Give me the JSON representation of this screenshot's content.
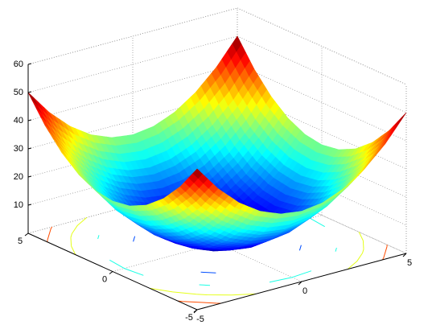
{
  "chart_data": {
    "type": "surface",
    "x": [
      -5,
      -4,
      -3,
      -2,
      -1,
      0,
      1,
      2,
      3,
      4,
      5
    ],
    "y": [
      -5,
      -4,
      -3,
      -2,
      -1,
      0,
      1,
      2,
      3,
      4,
      5
    ],
    "z": [
      [
        50,
        41,
        34,
        29,
        26,
        25,
        26,
        29,
        34,
        41,
        50
      ],
      [
        41,
        32,
        25,
        20,
        17,
        16,
        17,
        20,
        25,
        32,
        41
      ],
      [
        34,
        25,
        18,
        13,
        10,
        9,
        10,
        13,
        18,
        25,
        34
      ],
      [
        29,
        20,
        13,
        8,
        5,
        4,
        5,
        8,
        13,
        20,
        29
      ],
      [
        26,
        17,
        10,
        5,
        2,
        1,
        2,
        5,
        10,
        17,
        26
      ],
      [
        25,
        16,
        9,
        4,
        1,
        0,
        1,
        4,
        9,
        16,
        25
      ],
      [
        26,
        17,
        10,
        5,
        2,
        1,
        2,
        5,
        10,
        17,
        26
      ],
      [
        29,
        20,
        13,
        8,
        5,
        4,
        5,
        8,
        13,
        20,
        29
      ],
      [
        34,
        25,
        18,
        13,
        10,
        9,
        10,
        13,
        18,
        25,
        34
      ],
      [
        41,
        32,
        25,
        20,
        17,
        16,
        17,
        20,
        25,
        32,
        41
      ],
      [
        50,
        41,
        34,
        29,
        26,
        25,
        26,
        29,
        34,
        41,
        50
      ]
    ],
    "xlim": [
      -5,
      5
    ],
    "ylim": [
      -5,
      5
    ],
    "zlim": [
      0,
      60
    ],
    "xticks": [
      -5,
      0,
      5
    ],
    "yticks": [
      -5,
      0,
      5
    ],
    "zticks": [
      10,
      20,
      30,
      40,
      50,
      60
    ],
    "colormap": "jet",
    "contour": true,
    "grid": true
  }
}
